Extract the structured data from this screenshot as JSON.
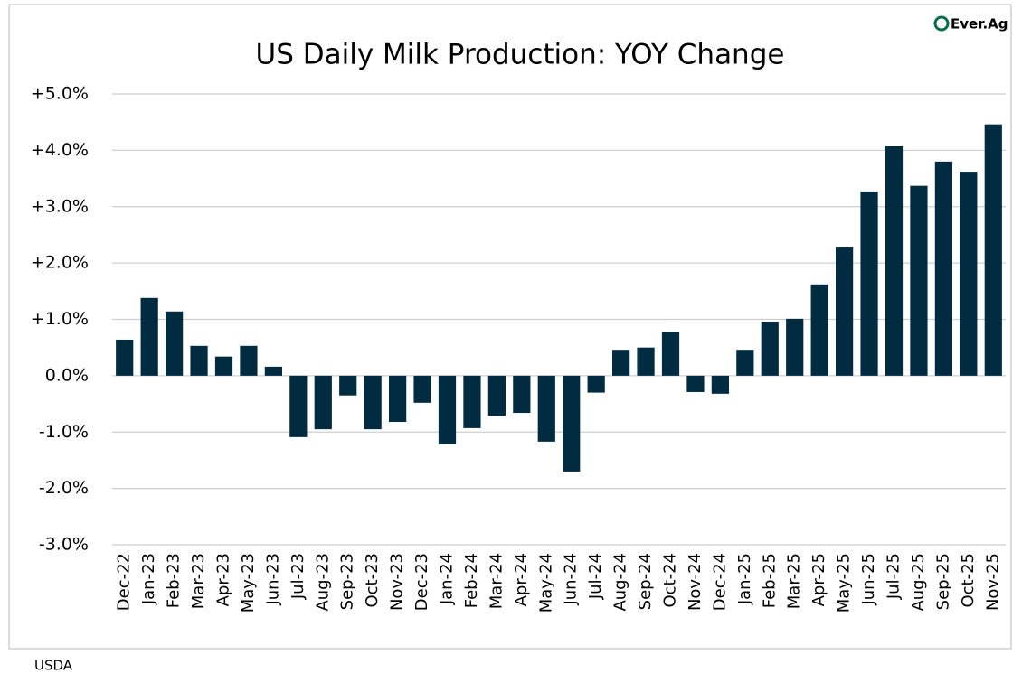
{
  "chart_data": {
    "type": "bar",
    "title": "US Daily Milk Production: YOY Change",
    "brand": "Ever.Ag",
    "source": "USDA",
    "categories": [
      "Dec-22",
      "Jan-23",
      "Feb-23",
      "Mar-23",
      "Apr-23",
      "May-23",
      "Jun-23",
      "Jul-23",
      "Aug-23",
      "Sep-23",
      "Oct-23",
      "Nov-23",
      "Dec-23",
      "Jan-24",
      "Feb-24",
      "Mar-24",
      "Apr-24",
      "May-24",
      "Jun-24",
      "Jul-24",
      "Aug-24",
      "Sep-24",
      "Oct-24",
      "Nov-24",
      "Dec-24",
      "Jan-25",
      "Feb-25",
      "Mar-25",
      "Apr-25",
      "May-25",
      "Jun-25",
      "Jul-25",
      "Aug-25",
      "Sep-25",
      "Oct-25",
      "Nov-25"
    ],
    "values": [
      0.64,
      1.38,
      1.14,
      0.53,
      0.34,
      0.53,
      0.16,
      -1.09,
      -0.95,
      -0.35,
      -0.95,
      -0.82,
      -0.48,
      -1.22,
      -0.93,
      -0.71,
      -0.66,
      -1.17,
      -1.7,
      -0.3,
      0.46,
      0.5,
      0.77,
      -0.29,
      -0.32,
      0.46,
      0.96,
      1.01,
      1.62,
      2.29,
      3.27,
      4.07,
      3.37,
      3.8,
      3.62,
      4.46
    ],
    "color": "#002b40",
    "ylim": [
      -3,
      5
    ],
    "yticks": [
      {
        "value": -3,
        "label": "-3.0%"
      },
      {
        "value": -2,
        "label": "-2.0%"
      },
      {
        "value": -1,
        "label": "-1.0%"
      },
      {
        "value": 0,
        "label": "0.0%"
      },
      {
        "value": 1,
        "label": "+1.0%"
      },
      {
        "value": 2,
        "label": "+2.0%"
      },
      {
        "value": 3,
        "label": "+3.0%"
      },
      {
        "value": 4,
        "label": "+4.0%"
      },
      {
        "value": 5,
        "label": "+5.0%"
      }
    ],
    "grid": true
  }
}
